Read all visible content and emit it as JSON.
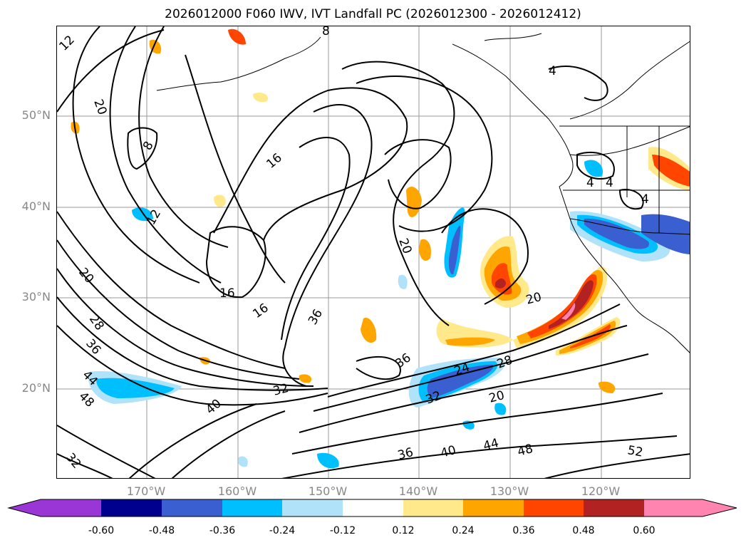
{
  "title": "2026012000 F060 IWV, IVT Landfall PC (2026012300 - 2026012412)",
  "lat_labels": [
    "50°N",
    "40°N",
    "30°N",
    "20°N"
  ],
  "lon_labels": [
    "170°W",
    "160°W",
    "150°W",
    "140°W",
    "130°W",
    "120°W"
  ],
  "contour_labels": [
    "12",
    "20",
    "8",
    "16",
    "12",
    "16",
    "16",
    "36",
    "20",
    "28",
    "36",
    "44",
    "48",
    "40",
    "32",
    "32",
    "20",
    "24",
    "28",
    "32",
    "36",
    "20",
    "36",
    "40",
    "44",
    "48",
    "52",
    "4",
    "4",
    "4",
    "4",
    "8"
  ],
  "colorbar": {
    "ticks": [
      "-0.60",
      "-0.48",
      "-0.36",
      "-0.24",
      "-0.12",
      "0.12",
      "0.24",
      "0.36",
      "0.48",
      "0.60"
    ],
    "colors": [
      "#9a35d6",
      "#00008e",
      "#3a5fd0",
      "#00bfff",
      "#b0e2fa",
      "#ffffff",
      "#ffe98a",
      "#ffa500",
      "#ff4500",
      "#b22222",
      "#ff85b0"
    ]
  }
}
